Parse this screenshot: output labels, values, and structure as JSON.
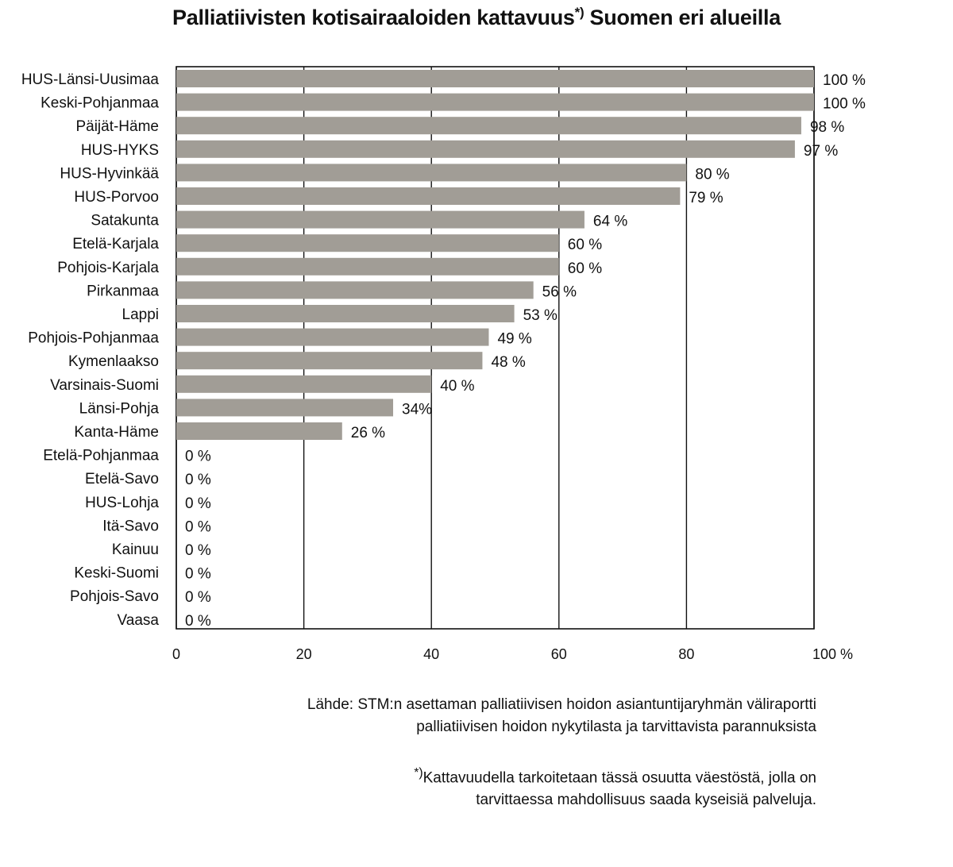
{
  "title": "Palliatiivisten kotisairaaloiden kattavuus",
  "title_marker": "*)",
  "title_suffix": " Suomen eri alueilla",
  "source_line1": "Lähde: STM:n asettaman palliatiivisen hoidon asiantuntijaryhmän väliraportti",
  "source_line2": "palliatiivisen hoidon nykytilasta ja tarvittavista parannuksista",
  "footnote_marker": "*)",
  "footnote_line1": "Kattavuudella tarkoitetaan tässä osuutta väestöstä, jolla on",
  "footnote_line2": "tarvittaessa mahdollisuus saada kyseisiä palveluja.",
  "chart_data": {
    "type": "bar",
    "orientation": "horizontal",
    "categories": [
      "HUS-Länsi-Uusimaa",
      "Keski-Pohjanmaa",
      "Päijät-Häme",
      "HUS-HYKS",
      "HUS-Hyvinkää",
      "HUS-Porvoo",
      "Satakunta",
      "Etelä-Karjala",
      "Pohjois-Karjala",
      "Pirkanmaa",
      "Lappi",
      "Pohjois-Pohjanmaa",
      "Kymenlaakso",
      "Varsinais-Suomi",
      "Länsi-Pohja",
      "Kanta-Häme",
      "Etelä-Pohjanmaa",
      "Etelä-Savo",
      "HUS-Lohja",
      "Itä-Savo",
      "Kainuu",
      "Keski-Suomi",
      "Pohjois-Savo",
      "Vaasa"
    ],
    "values": [
      100,
      100,
      98,
      97,
      80,
      79,
      64,
      60,
      60,
      56,
      53,
      49,
      48,
      40,
      34,
      26,
      0,
      0,
      0,
      0,
      0,
      0,
      0,
      0
    ],
    "value_labels": [
      "100 %",
      "100 %",
      "98 %",
      "97 %",
      "80 %",
      "79 %",
      "64 %",
      "60 %",
      "60 %",
      "56 %",
      "53 %",
      "49 %",
      "48 %",
      "40 %",
      "34%",
      "26 %",
      "0 %",
      "0 %",
      "0 %",
      "0 %",
      "0 %",
      "0 %",
      "0 %",
      "0 %"
    ],
    "xlim": [
      0,
      100
    ],
    "xticks": [
      "0",
      "20",
      "40",
      "60",
      "80",
      "100 %"
    ],
    "bar_color": "#a19d96",
    "grid": true
  }
}
